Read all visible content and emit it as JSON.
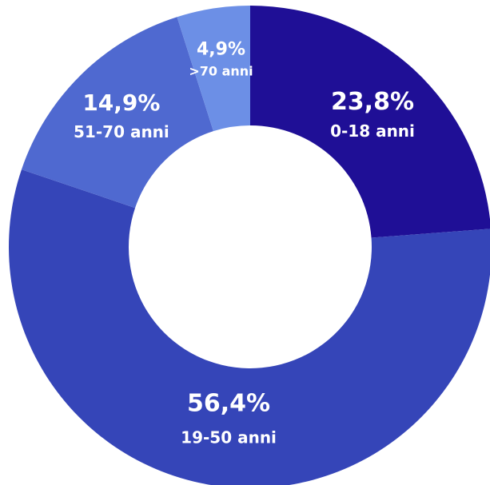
{
  "chart_data": {
    "type": "pie",
    "categories": [
      "0-18 anni",
      "19-50 anni",
      "51-70 anni",
      ">70 anni"
    ],
    "values": [
      23.8,
      56.4,
      14.9,
      4.9
    ],
    "value_labels": [
      "23,8%",
      "56,4%",
      "14,9%",
      "4,9%"
    ],
    "colors": [
      "#1f0f96",
      "#3545b8",
      "#4f69d0",
      "#6c8fe6"
    ],
    "donut": true,
    "title": "",
    "legend": "none"
  }
}
